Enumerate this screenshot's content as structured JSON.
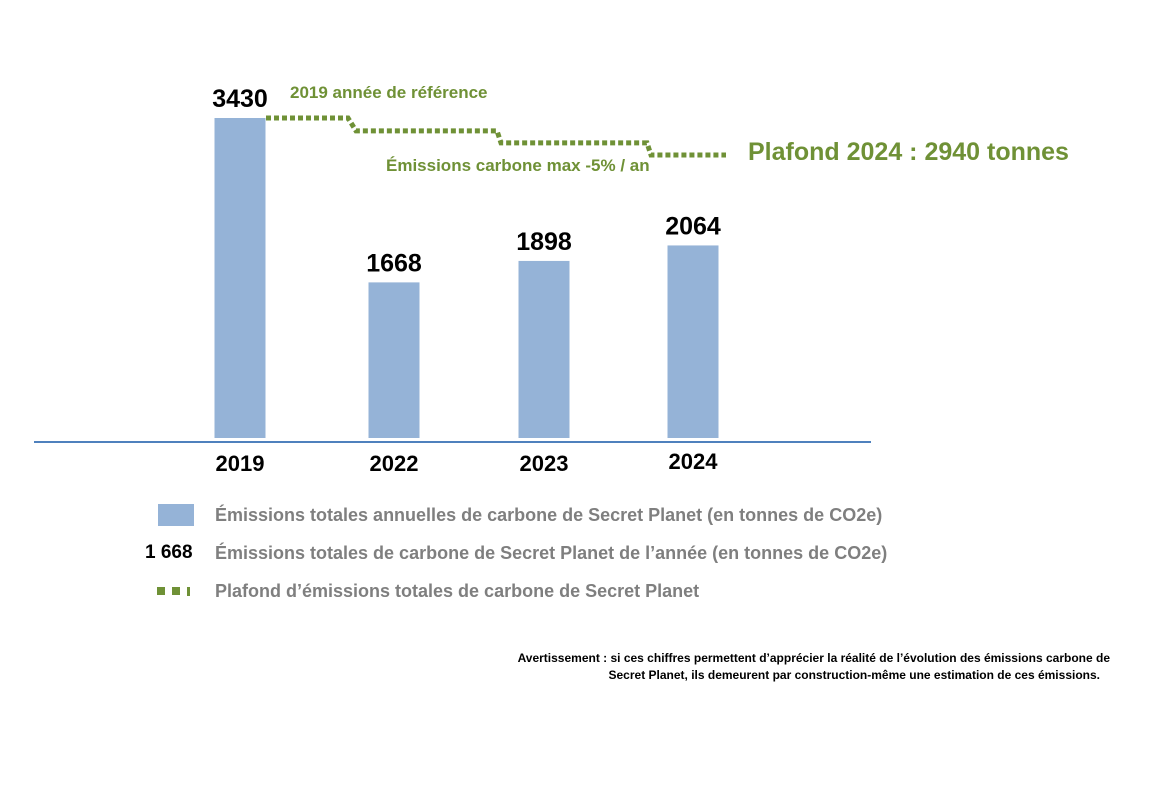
{
  "chart_data": {
    "type": "bar",
    "categories": [
      "2019",
      "2022",
      "2023",
      "2024"
    ],
    "values": [
      3430,
      1668,
      1898,
      2064
    ],
    "bar_labels": [
      "3430",
      "1668",
      "1898",
      "2064"
    ],
    "ylim": [
      0,
      3500
    ],
    "colors": {
      "bar": "#95b3d7",
      "axis": "#4f81bd",
      "cap": "#6f9136"
    },
    "cap_line": {
      "name": "Plafond d'émissions totales de carbone de Secret Planet",
      "style": "dotted-step",
      "levels": [
        3430,
        3260,
        3100,
        2940
      ],
      "annotations": {
        "reference": "2019 année de référence",
        "reduction": "Émissions carbone max -5% / an",
        "ceiling": "Plafond 2024 : 2940 tonnes"
      }
    },
    "legend": [
      {
        "key": "swatch",
        "label": "Émissions totales annuelles de carbone de Secret Planet (en tonnes de CO2e)"
      },
      {
        "key": "1 668",
        "label": "Émissions totales de carbone de Secret Planet de l’année (en tonnes de CO2e)"
      },
      {
        "key": "dots",
        "label": "Plafond d’émissions totales de carbone de Secret Planet"
      }
    ]
  },
  "disclaimer": {
    "line1": "Avertissement : si ces chiffres permettent d’apprécier la réalité de l’évolution des émissions carbone de",
    "line2": "Secret Planet, ils demeurent par construction-même une estimation de ces émissions."
  }
}
